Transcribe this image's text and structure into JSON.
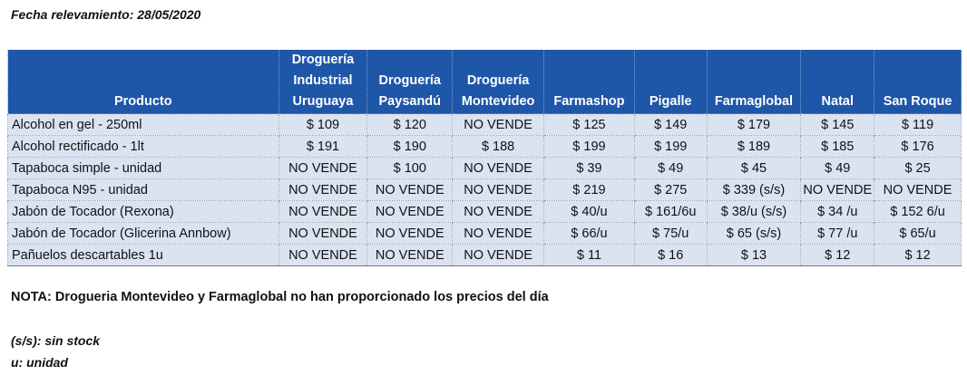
{
  "header": {
    "date_line": "Fecha relevamiento: 28/05/2020"
  },
  "table": {
    "columns": [
      "Producto",
      "Droguería\nIndustrial\nUruguaya",
      "Droguería\nPaysandú",
      "Droguería\nMontevideo",
      "Farmashop",
      "Pigalle",
      "Farmaglobal",
      "Natal",
      "San Roque"
    ],
    "rows": [
      [
        "Alcohol en gel  - 250ml",
        "$ 109",
        "$ 120",
        "NO VENDE",
        "$ 125",
        "$ 149",
        "$ 179",
        "$ 145",
        "$ 119"
      ],
      [
        "Alcohol rectificado - 1lt",
        "$ 191",
        "$ 190",
        "$ 188",
        "$ 199",
        "$ 199",
        "$ 189",
        "$ 185",
        "$ 176"
      ],
      [
        "Tapaboca simple - unidad",
        "NO VENDE",
        "$ 100",
        "NO VENDE",
        "$ 39",
        "$ 49",
        "$ 45",
        "$ 49",
        "$ 25"
      ],
      [
        "Tapaboca N95 - unidad",
        "NO VENDE",
        "NO VENDE",
        "NO VENDE",
        "$ 219",
        "$ 275",
        "$ 339 (s/s)",
        "NO VENDE",
        "NO VENDE"
      ],
      [
        "Jabón de Tocador (Rexona)",
        "NO VENDE",
        "NO VENDE",
        "NO VENDE",
        "$ 40/u",
        "$ 161/6u",
        "$ 38/u (s/s)",
        "$ 34 /u",
        "$ 152 6/u"
      ],
      [
        "Jabón de Tocador (Glicerina Annbow)",
        "NO VENDE",
        "NO VENDE",
        "NO VENDE",
        "$ 66/u",
        "$ 75/u",
        "$ 65 (s/s)",
        "$ 77 /u",
        "$ 65/u"
      ],
      [
        "Pañuelos descartables 1u",
        "NO VENDE",
        "NO VENDE",
        "NO VENDE",
        "$ 11",
        "$ 16",
        "$ 13",
        "$ 12",
        "$ 12"
      ]
    ]
  },
  "footer": {
    "note": "NOTA: Drogueria Montevideo y Farmaglobal no han proporcionado los precios del día",
    "legend_ss": "(s/s): sin stock",
    "legend_u": "u: unidad"
  },
  "colors": {
    "header_bg": "#1e56a8",
    "cell_bg": "#dbe3f1"
  }
}
